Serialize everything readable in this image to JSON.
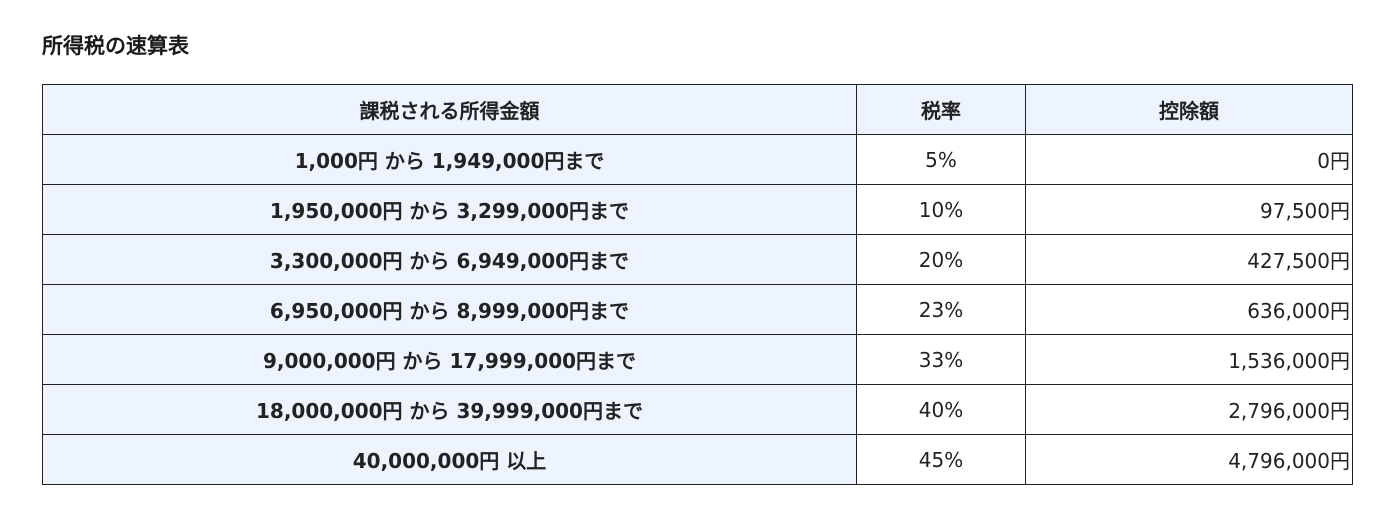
{
  "title": "所得税の速算表",
  "table": {
    "headers": [
      "課税される所得金額",
      "税率",
      "控除額"
    ],
    "rows": [
      {
        "range": "1,000円 から 1,949,000円まで",
        "rate": "5%",
        "deduction": "0円"
      },
      {
        "range": "1,950,000円 から 3,299,000円まで",
        "rate": "10%",
        "deduction": "97,500円"
      },
      {
        "range": "3,300,000円 から 6,949,000円まで",
        "rate": "20%",
        "deduction": "427,500円"
      },
      {
        "range": "6,950,000円 から 8,999,000円まで",
        "rate": "23%",
        "deduction": "636,000円"
      },
      {
        "range": "9,000,000円 から 17,999,000円まで",
        "rate": "33%",
        "deduction": "1,536,000円"
      },
      {
        "range": "18,000,000円 から 39,999,000円まで",
        "rate": "40%",
        "deduction": "2,796,000円"
      },
      {
        "range": "40,000,000円 以上",
        "rate": "45%",
        "deduction": "4,796,000円"
      }
    ]
  },
  "colors": {
    "header_bg": "#eef4ff",
    "border": "#222222",
    "text": "#222222"
  }
}
